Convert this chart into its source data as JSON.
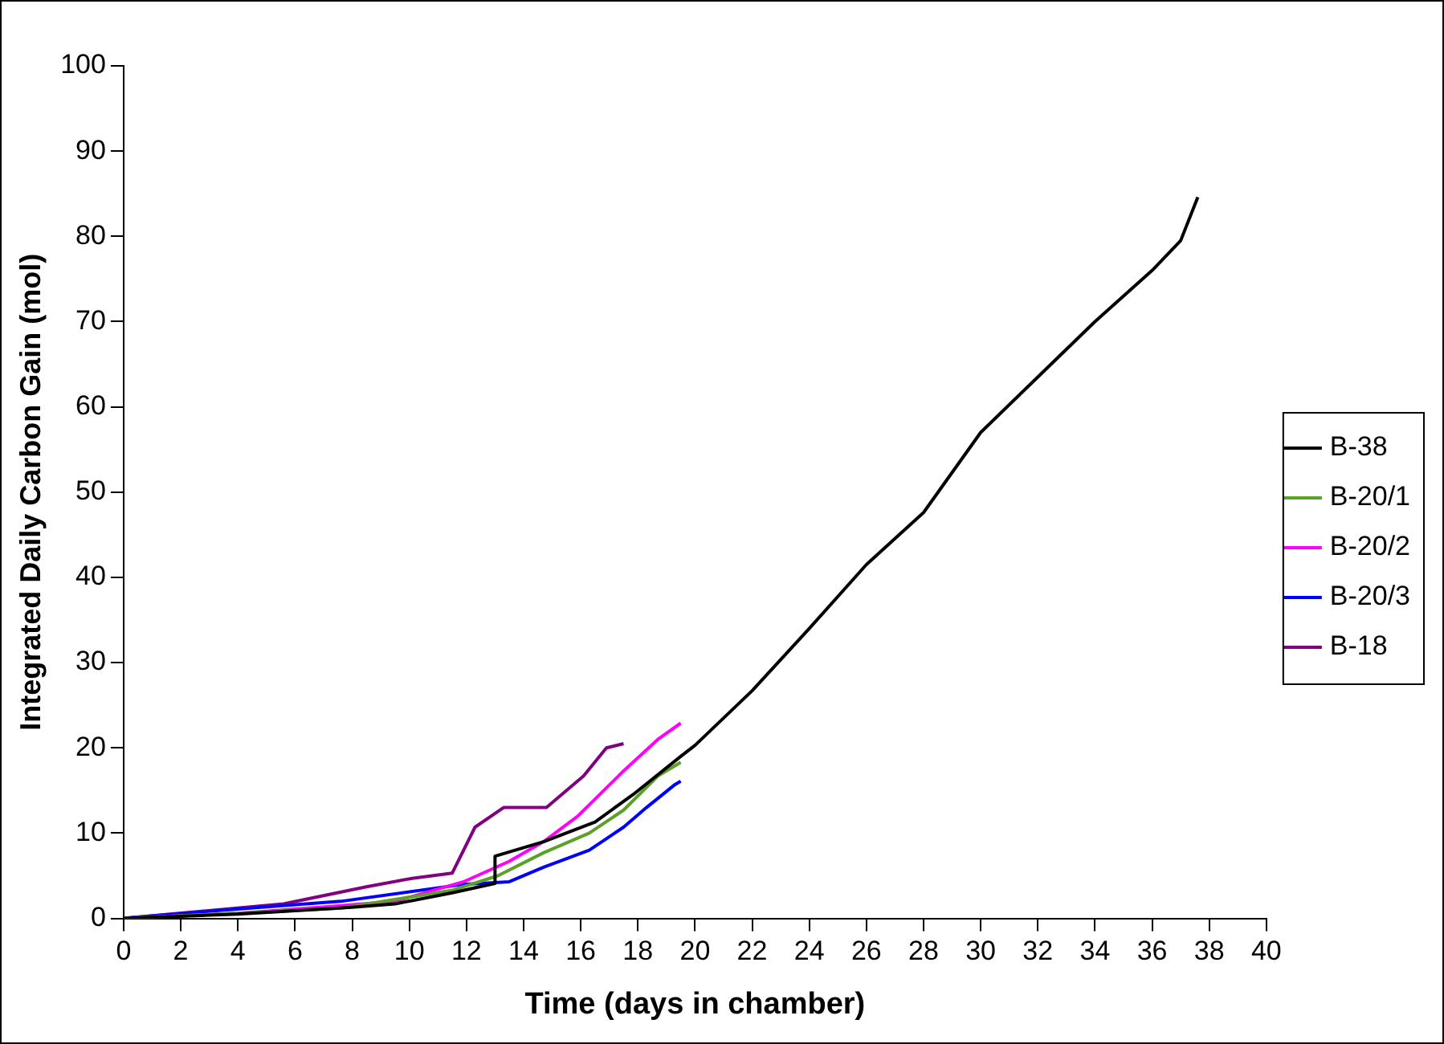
{
  "chart_data": {
    "type": "line",
    "xlabel": "Time (days in chamber)",
    "ylabel": "Integrated Daily Carbon Gain (mol)",
    "xlim": [
      0,
      40
    ],
    "xticks": [
      0,
      2,
      4,
      6,
      8,
      10,
      12,
      14,
      16,
      18,
      20,
      22,
      24,
      26,
      28,
      30,
      32,
      34,
      36,
      38,
      40
    ],
    "ylim": [
      0,
      100
    ],
    "yticks": [
      0,
      10,
      20,
      30,
      40,
      50,
      60,
      70,
      80,
      90,
      100
    ],
    "grid": false,
    "legend": "right",
    "marker": "none",
    "line_style": "solid",
    "series": [
      {
        "name": "B-38",
        "color": "#000000",
        "x": [
          0,
          4,
          8,
          9.5,
          11.5,
          13,
          13,
          14.7,
          16.5,
          17.9,
          19.5,
          20,
          22,
          24,
          26,
          28,
          30,
          32,
          34,
          36,
          37,
          37.6
        ],
        "values": [
          0,
          0.5,
          1.3,
          1.7,
          3,
          4.1,
          7.3,
          9,
          11.3,
          14.7,
          19,
          20.3,
          26.7,
          34,
          41.5,
          47.6,
          57,
          63.5,
          70,
          76,
          79.5,
          84.6
        ]
      },
      {
        "name": "B-20/1",
        "color": "#5ca028",
        "x": [
          0,
          4,
          7.6,
          11.5,
          13.1,
          14.7,
          16.3,
          17.5,
          18.7,
          19.5
        ],
        "values": [
          0,
          0.6,
          1.2,
          3.3,
          5,
          7.7,
          10,
          12.7,
          16.7,
          18.3
        ]
      },
      {
        "name": "B-20/2",
        "color": "#ff00ff",
        "x": [
          0,
          4,
          7.6,
          9.5,
          11.9,
          13.5,
          14.7,
          15.9,
          17.5,
          18.7,
          19.5
        ],
        "values": [
          0,
          0.6,
          1.5,
          2,
          4.3,
          6.7,
          9,
          12,
          17.3,
          21,
          22.9
        ]
      },
      {
        "name": "B-20/3",
        "color": "#0000ff",
        "x": [
          0,
          3.6,
          7.6,
          11.9,
          13.5,
          14.7,
          16.3,
          17.5,
          18.3,
          19.3,
          19.5
        ],
        "values": [
          0,
          1,
          2,
          4,
          4.3,
          6,
          8,
          10.7,
          13,
          15.7,
          16.1
        ]
      },
      {
        "name": "B-18",
        "color": "#800080",
        "x": [
          0,
          5.6,
          8.5,
          10.1,
          11.5,
          12.3,
          13.3,
          14.8,
          16.1,
          16.9,
          17.5
        ],
        "values": [
          0,
          1.7,
          3.7,
          4.7,
          5.3,
          10.7,
          13,
          13,
          16.7,
          20,
          20.5
        ]
      }
    ]
  }
}
